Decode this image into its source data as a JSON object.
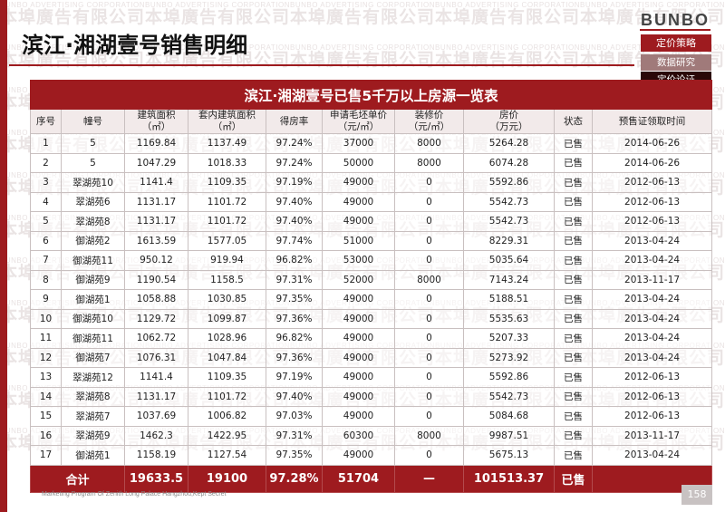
{
  "watermark": {
    "cn": "本埠廣告有限公司",
    "en": "BUNBO ADVERTISING CORPORATION"
  },
  "header": {
    "title": "滨江·湘湖壹号销售明细",
    "logo": "BUNBO"
  },
  "nav": {
    "items": [
      "定价策略",
      "数据研究",
      "定价论证"
    ]
  },
  "table": {
    "caption": "滨江·湘湖壹号已售5千万以上房源一览表",
    "columns": [
      [
        "序号"
      ],
      [
        "幢号"
      ],
      [
        "建筑面积",
        "（㎡）"
      ],
      [
        "套内建筑面积",
        "（㎡）"
      ],
      [
        "得房率"
      ],
      [
        "申请毛坯单价",
        "（元/㎡）"
      ],
      [
        "装修价",
        "（元/㎡）"
      ],
      [
        "房价",
        "（万元）"
      ],
      [
        "状态"
      ],
      [
        "预售证领取时间"
      ]
    ],
    "rows": [
      [
        "1",
        "5",
        "1169.84",
        "1137.49",
        "97.24%",
        "37000",
        "8000",
        "5264.28",
        "已售",
        "2014-06-26"
      ],
      [
        "2",
        "5",
        "1047.29",
        "1018.33",
        "97.24%",
        "50000",
        "8000",
        "6074.28",
        "已售",
        "2014-06-26"
      ],
      [
        "3",
        "翠湖苑10",
        "1141.4",
        "1109.35",
        "97.19%",
        "49000",
        "0",
        "5592.86",
        "已售",
        "2012-06-13"
      ],
      [
        "4",
        "翠湖苑6",
        "1131.17",
        "1101.72",
        "97.40%",
        "49000",
        "0",
        "5542.73",
        "已售",
        "2012-06-13"
      ],
      [
        "5",
        "翠湖苑8",
        "1131.17",
        "1101.72",
        "97.40%",
        "49000",
        "0",
        "5542.73",
        "已售",
        "2012-06-13"
      ],
      [
        "6",
        "御湖苑2",
        "1613.59",
        "1577.05",
        "97.74%",
        "51000",
        "0",
        "8229.31",
        "已售",
        "2013-04-24"
      ],
      [
        "7",
        "御湖苑11",
        "950.12",
        "919.94",
        "96.82%",
        "53000",
        "0",
        "5035.64",
        "已售",
        "2013-04-24"
      ],
      [
        "8",
        "御湖苑9",
        "1190.54",
        "1158.5",
        "97.31%",
        "52000",
        "8000",
        "7143.24",
        "已售",
        "2013-11-17"
      ],
      [
        "9",
        "御湖苑1",
        "1058.88",
        "1030.85",
        "97.35%",
        "49000",
        "0",
        "5188.51",
        "已售",
        "2013-04-24"
      ],
      [
        "10",
        "御湖苑10",
        "1129.72",
        "1099.87",
        "97.36%",
        "49000",
        "0",
        "5535.63",
        "已售",
        "2013-04-24"
      ],
      [
        "11",
        "御湖苑11",
        "1062.72",
        "1028.96",
        "96.82%",
        "49000",
        "0",
        "5207.33",
        "已售",
        "2013-04-24"
      ],
      [
        "12",
        "御湖苑7",
        "1076.31",
        "1047.84",
        "97.36%",
        "49000",
        "0",
        "5273.92",
        "已售",
        "2013-04-24"
      ],
      [
        "13",
        "翠湖苑12",
        "1141.4",
        "1109.35",
        "97.19%",
        "49000",
        "0",
        "5592.86",
        "已售",
        "2012-06-13"
      ],
      [
        "14",
        "翠湖苑8",
        "1131.17",
        "1101.72",
        "97.40%",
        "49000",
        "0",
        "5542.73",
        "已售",
        "2012-06-13"
      ],
      [
        "15",
        "翠湖苑7",
        "1037.69",
        "1006.82",
        "97.03%",
        "49000",
        "0",
        "5084.68",
        "已售",
        "2012-06-13"
      ],
      [
        "16",
        "翠湖苑9",
        "1462.3",
        "1422.95",
        "97.31%",
        "60300",
        "8000",
        "9987.51",
        "已售",
        "2013-11-17"
      ],
      [
        "17",
        "御湖苑1",
        "1158.19",
        "1127.54",
        "97.35%",
        "49000",
        "0",
        "5675.13",
        "已售",
        "2013-04-24"
      ]
    ],
    "total": [
      "合计",
      "19633.5",
      "19100",
      "97.28%",
      "51704",
      "—",
      "101513.37",
      "已售",
      ""
    ]
  },
  "footer": {
    "text": "Marketing Program Of Zenith Long Palace Hangzhou,Kept Secret",
    "page": "158"
  },
  "colors": {
    "accent": "#9e1b1f",
    "nav_secondary": "#a07a7a",
    "nav_tertiary": "#2a0808"
  }
}
